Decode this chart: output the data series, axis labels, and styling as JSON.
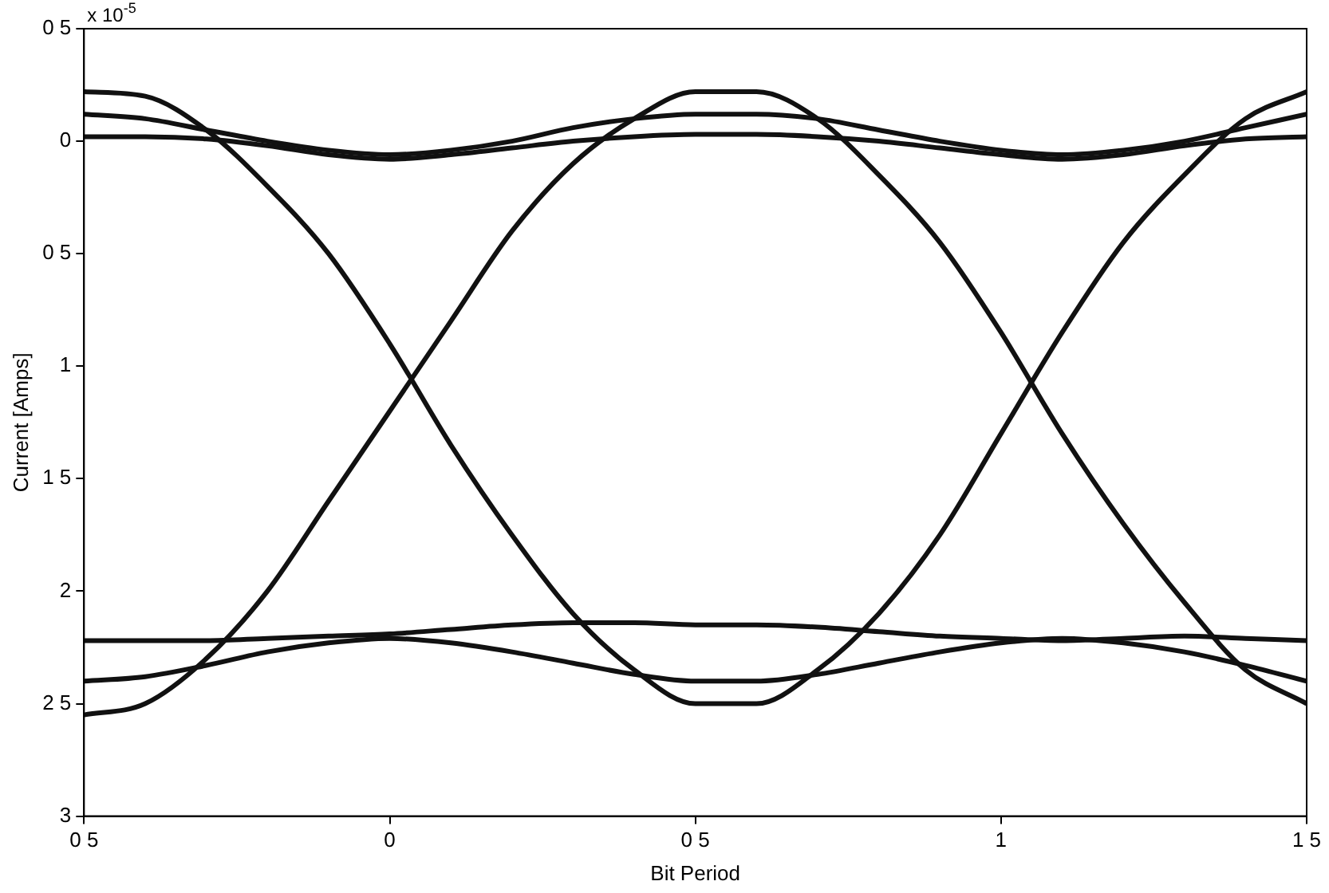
{
  "chart_data": {
    "type": "line",
    "xlabel": "Bit Period",
    "ylabel": "Current [Amps]",
    "annotations": [
      "x 10$^{-5}$"
    ],
    "x": [
      -0.5,
      -0.4,
      -0.3,
      -0.2,
      -0.1,
      0,
      0.1,
      0.2,
      0.3,
      0.4,
      0.5,
      0.6,
      0.7,
      0.8,
      0.9,
      1,
      1.1,
      1.2,
      1.3,
      1.4,
      1.5
    ],
    "xlim": [
      -0.5,
      1.5
    ],
    "xticks": [
      {
        "value": -0.5,
        "label": "0 5"
      },
      0,
      {
        "value": 0.5,
        "label": "0 5"
      },
      1,
      {
        "value": 1.5,
        "label": "1 5"
      }
    ],
    "ylim": [
      -3,
      0.5
    ],
    "yticks": [
      {
        "value": 0.5,
        "label": "0 5"
      },
      0,
      {
        "value": -0.5,
        "label": "0 5"
      },
      {
        "value": -1,
        "label": "1"
      },
      {
        "value": -1.5,
        "label": "1 5"
      },
      {
        "value": -2,
        "label": "2"
      },
      {
        "value": -2.5,
        "label": "2 5"
      },
      {
        "value": -3,
        "label": "3"
      }
    ],
    "grid": false,
    "marker": "none",
    "line_style": "solid",
    "series": [
      {
        "color": "#111111",
        "values": [
          0.22,
          0.2,
          0.05,
          -0.2,
          -0.5,
          -0.9,
          -1.35,
          -1.75,
          -2.1,
          -2.35,
          -2.5,
          -2.5,
          -2.35,
          -2.1,
          -1.75,
          -1.3,
          -0.85,
          -0.45,
          -0.15,
          0.1,
          0.22
        ]
      },
      {
        "color": "#111111",
        "values": [
          -2.55,
          -2.5,
          -2.3,
          -2,
          -1.6,
          -1.2,
          -0.8,
          -0.4,
          -0.1,
          0.1,
          0.22,
          0.22,
          0.1,
          -0.15,
          -0.45,
          -0.85,
          -1.3,
          -1.7,
          -2.05,
          -2.35,
          -2.5
        ]
      },
      {
        "color": "#111111",
        "values": [
          0.12,
          0.1,
          0.05,
          0,
          -0.04,
          -0.06,
          -0.04,
          0,
          0.06,
          0.1,
          0.12,
          0.12,
          0.1,
          0.05,
          0,
          -0.04,
          -0.06,
          -0.04,
          0,
          0.06,
          0.12
        ]
      },
      {
        "color": "#111111",
        "values": [
          0.02,
          0.02,
          0.01,
          -0.02,
          -0.06,
          -0.08,
          -0.06,
          -0.03,
          0,
          0.02,
          0.03,
          0.03,
          0.02,
          0,
          -0.03,
          -0.06,
          -0.08,
          -0.06,
          -0.02,
          0.01,
          0.02
        ]
      },
      {
        "color": "#111111",
        "values": [
          -2.4,
          -2.38,
          -2.33,
          -2.27,
          -2.23,
          -2.21,
          -2.23,
          -2.27,
          -2.32,
          -2.37,
          -2.4,
          -2.4,
          -2.37,
          -2.32,
          -2.27,
          -2.23,
          -2.21,
          -2.23,
          -2.27,
          -2.33,
          -2.4
        ]
      },
      {
        "color": "#111111",
        "values": [
          -2.22,
          -2.22,
          -2.22,
          -2.21,
          -2.2,
          -2.19,
          -2.17,
          -2.15,
          -2.14,
          -2.14,
          -2.15,
          -2.15,
          -2.16,
          -2.18,
          -2.2,
          -2.21,
          -2.22,
          -2.21,
          -2.2,
          -2.21,
          -2.22
        ]
      }
    ]
  }
}
